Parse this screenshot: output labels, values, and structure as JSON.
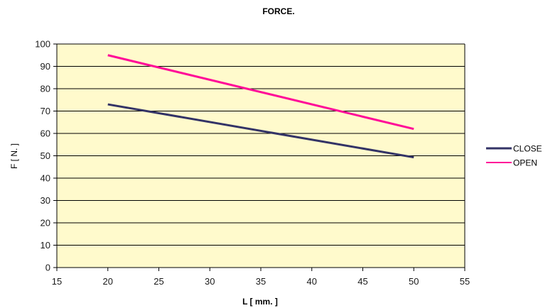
{
  "chart_data": {
    "type": "line",
    "title": "FORCE.",
    "xlabel": "L [ mm. ]",
    "ylabel": "F [ N. ]",
    "xlim": [
      15,
      55
    ],
    "ylim": [
      0,
      100
    ],
    "xticks": [
      15,
      20,
      25,
      30,
      35,
      40,
      45,
      50,
      55
    ],
    "yticks": [
      0,
      10,
      20,
      30,
      40,
      50,
      60,
      70,
      80,
      90,
      100
    ],
    "grid": "horizontal",
    "legend_position": "right",
    "plot_background": "#fffacc",
    "series": [
      {
        "name": "CLOSE",
        "color": "#333366",
        "x": [
          20,
          50
        ],
        "y": [
          73,
          49.3
        ]
      },
      {
        "name": "OPEN",
        "color": "#ff0a98",
        "x": [
          20,
          50
        ],
        "y": [
          95,
          62
        ]
      }
    ]
  }
}
